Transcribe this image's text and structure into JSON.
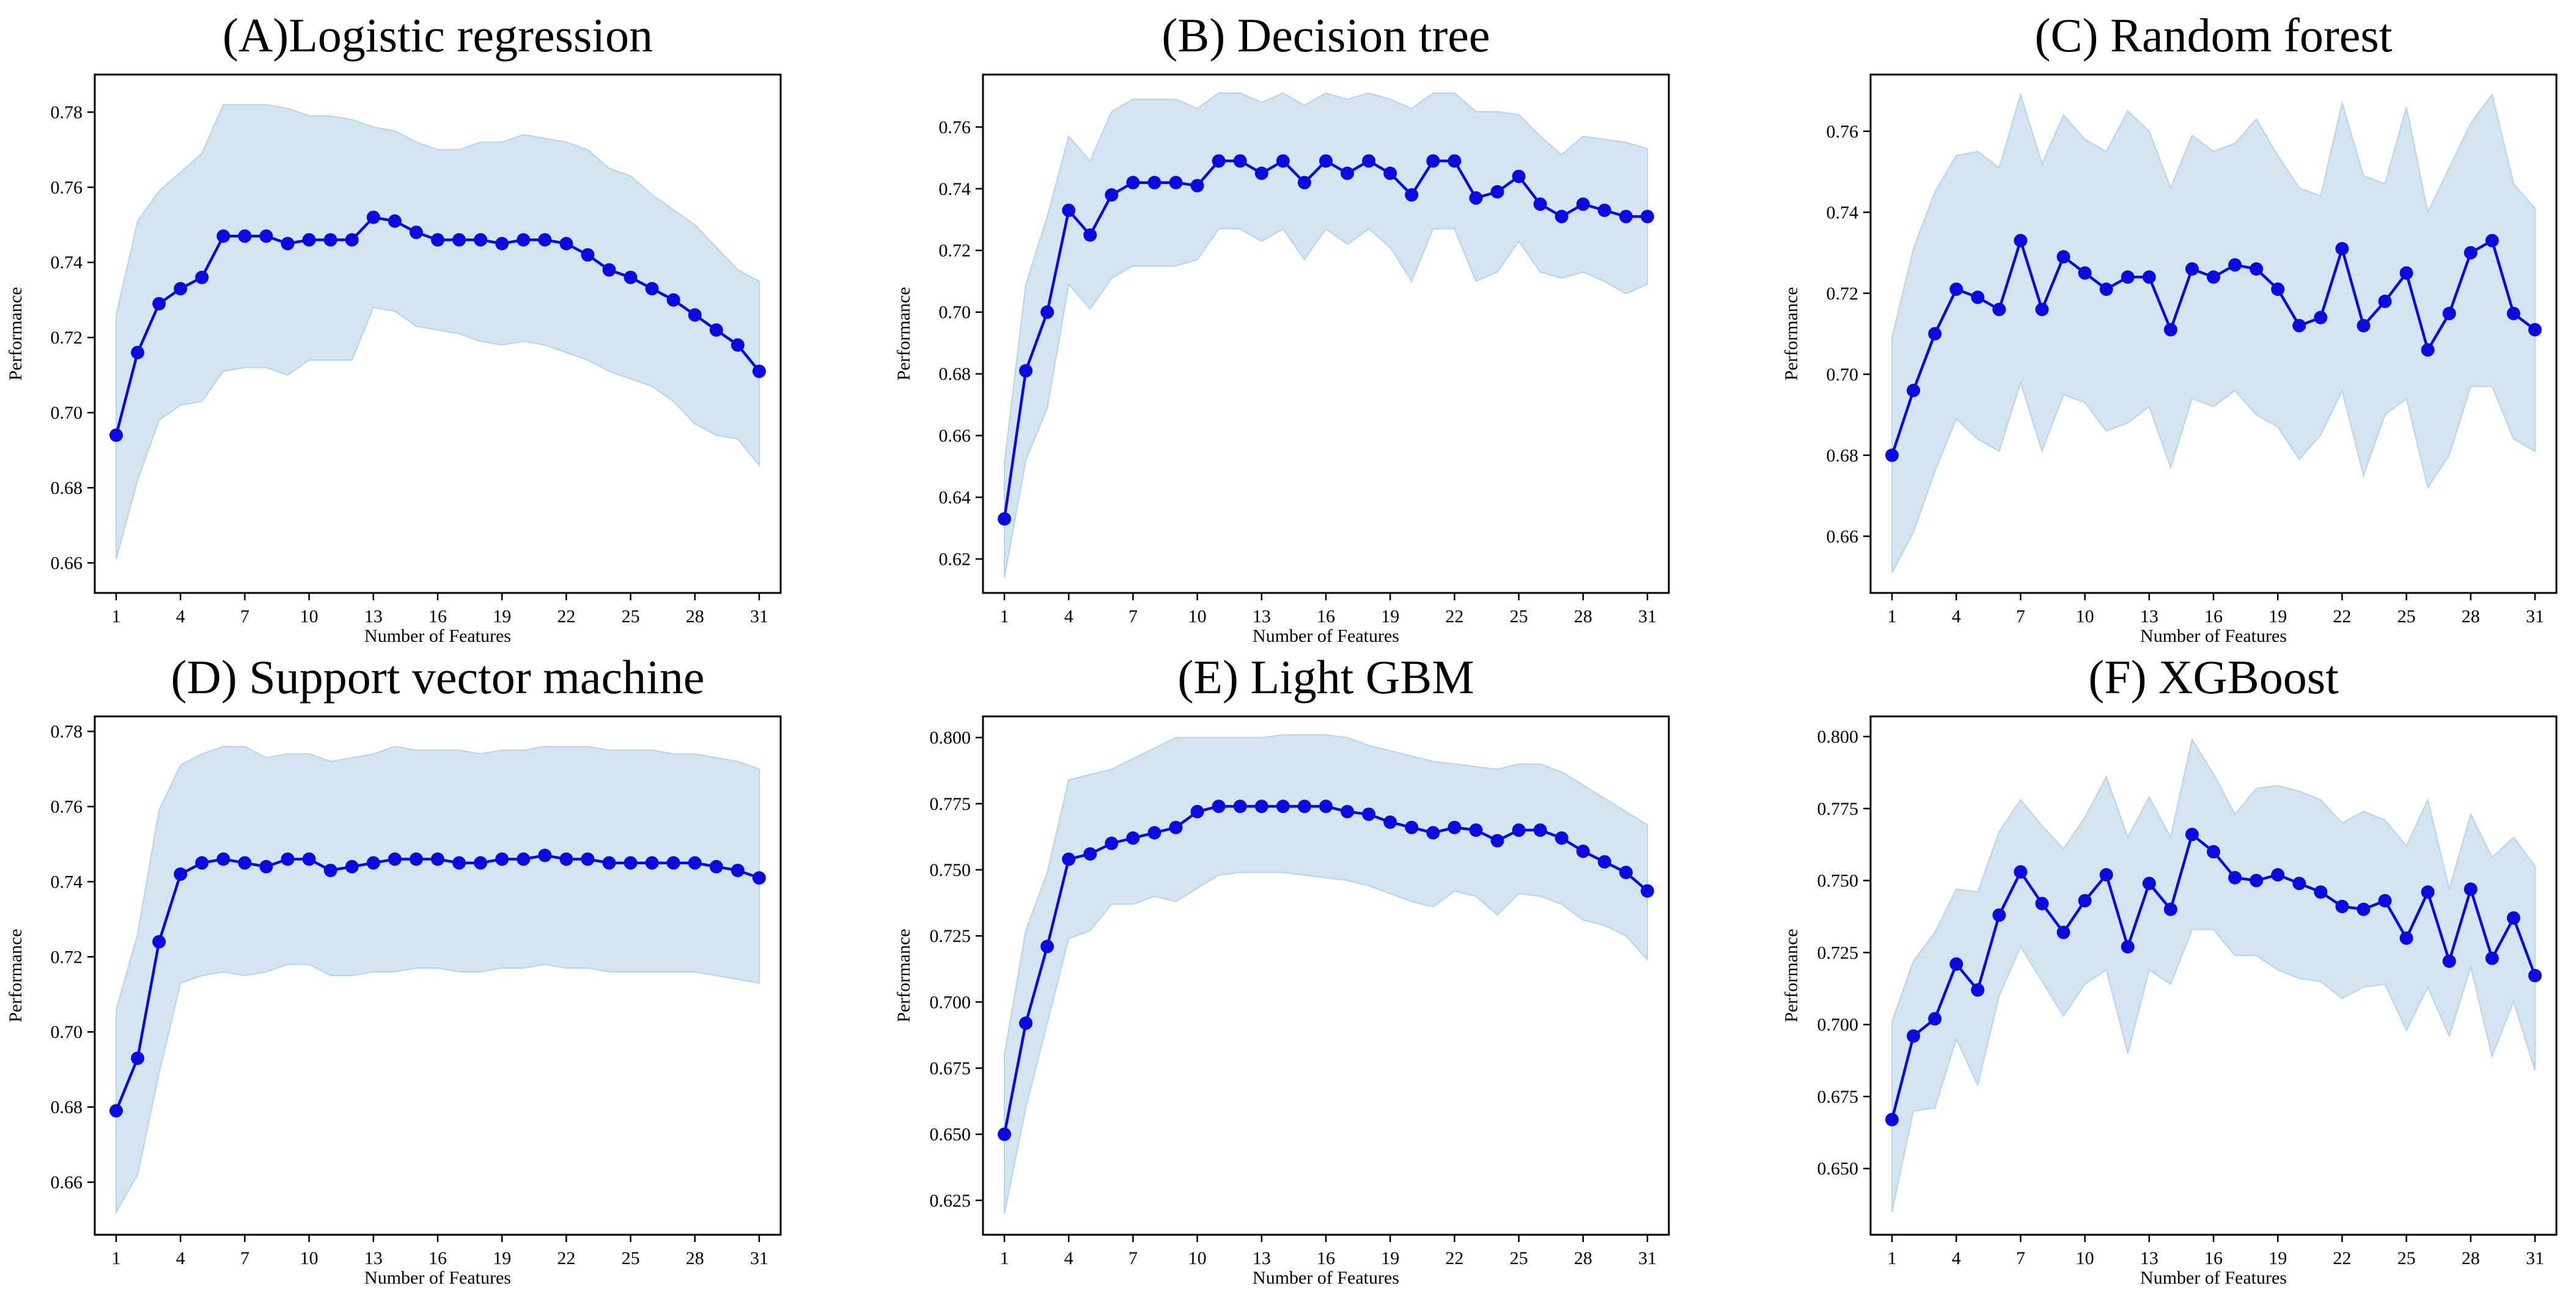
{
  "chart_data": [
    {
      "type": "line",
      "title": "(A)Logistic regression",
      "xlabel": "Number of Features",
      "ylabel": "Performance",
      "xlim": [
        0,
        32
      ],
      "ylim": [
        0.652,
        0.79
      ],
      "xticks": [
        1,
        4,
        7,
        10,
        13,
        16,
        19,
        22,
        25,
        28,
        31
      ],
      "yticks": [
        0.66,
        0.68,
        0.7,
        0.72,
        0.74,
        0.76,
        0.78
      ],
      "ytick_labels": [
        "0.66",
        "0.68",
        "0.70",
        "0.72",
        "0.74",
        "0.76",
        "0.78"
      ],
      "x": [
        1,
        2,
        3,
        4,
        5,
        6,
        7,
        8,
        9,
        10,
        11,
        12,
        13,
        14,
        15,
        16,
        17,
        18,
        19,
        20,
        21,
        22,
        23,
        24,
        25,
        26,
        27,
        28,
        29,
        30,
        31
      ],
      "y": [
        0.694,
        0.716,
        0.729,
        0.733,
        0.736,
        0.747,
        0.747,
        0.747,
        0.745,
        0.746,
        0.746,
        0.746,
        0.752,
        0.751,
        0.748,
        0.746,
        0.746,
        0.746,
        0.745,
        0.746,
        0.746,
        0.745,
        0.742,
        0.738,
        0.736,
        0.733,
        0.73,
        0.726,
        0.722,
        0.718,
        0.711
      ],
      "upper": [
        0.726,
        0.751,
        0.759,
        0.764,
        0.769,
        0.782,
        0.782,
        0.782,
        0.781,
        0.779,
        0.779,
        0.778,
        0.776,
        0.775,
        0.772,
        0.77,
        0.77,
        0.772,
        0.772,
        0.774,
        0.773,
        0.772,
        0.77,
        0.765,
        0.763,
        0.758,
        0.754,
        0.75,
        0.744,
        0.738,
        0.735
      ],
      "lower": [
        0.661,
        0.682,
        0.698,
        0.702,
        0.703,
        0.711,
        0.712,
        0.712,
        0.71,
        0.714,
        0.714,
        0.714,
        0.728,
        0.727,
        0.723,
        0.722,
        0.721,
        0.719,
        0.718,
        0.719,
        0.718,
        0.716,
        0.714,
        0.711,
        0.709,
        0.707,
        0.703,
        0.697,
        0.694,
        0.693,
        0.686
      ]
    },
    {
      "type": "line",
      "title": "(B) Decision tree",
      "xlabel": "Number of Features",
      "ylabel": "Performance",
      "xlim": [
        0,
        32
      ],
      "ylim": [
        0.609,
        0.777
      ],
      "xticks": [
        1,
        4,
        7,
        10,
        13,
        16,
        19,
        22,
        25,
        28,
        31
      ],
      "yticks": [
        0.62,
        0.64,
        0.66,
        0.68,
        0.7,
        0.72,
        0.74,
        0.76
      ],
      "ytick_labels": [
        "0.62",
        "0.64",
        "0.66",
        "0.68",
        "0.70",
        "0.72",
        "0.74",
        "0.76"
      ],
      "x": [
        1,
        2,
        3,
        4,
        5,
        6,
        7,
        8,
        9,
        10,
        11,
        12,
        13,
        14,
        15,
        16,
        17,
        18,
        19,
        20,
        21,
        22,
        23,
        24,
        25,
        26,
        27,
        28,
        29,
        30,
        31
      ],
      "y": [
        0.633,
        0.681,
        0.7,
        0.733,
        0.725,
        0.738,
        0.742,
        0.742,
        0.742,
        0.741,
        0.749,
        0.749,
        0.745,
        0.749,
        0.742,
        0.749,
        0.745,
        0.749,
        0.745,
        0.738,
        0.749,
        0.749,
        0.737,
        0.739,
        0.744,
        0.735,
        0.731,
        0.735,
        0.733,
        0.731,
        0.731
      ],
      "upper": [
        0.651,
        0.709,
        0.731,
        0.757,
        0.749,
        0.765,
        0.769,
        0.769,
        0.769,
        0.766,
        0.771,
        0.771,
        0.768,
        0.771,
        0.767,
        0.771,
        0.769,
        0.771,
        0.769,
        0.766,
        0.771,
        0.771,
        0.765,
        0.765,
        0.764,
        0.757,
        0.751,
        0.757,
        0.756,
        0.755,
        0.753
      ],
      "lower": [
        0.614,
        0.652,
        0.669,
        0.709,
        0.701,
        0.711,
        0.715,
        0.715,
        0.715,
        0.717,
        0.727,
        0.727,
        0.723,
        0.727,
        0.717,
        0.727,
        0.722,
        0.727,
        0.721,
        0.71,
        0.727,
        0.727,
        0.71,
        0.713,
        0.723,
        0.713,
        0.711,
        0.713,
        0.71,
        0.706,
        0.709
      ]
    },
    {
      "type": "line",
      "title": "(C) Random forest",
      "xlabel": "Number of Features",
      "ylabel": "Performance",
      "xlim": [
        0,
        32
      ],
      "ylim": [
        0.646,
        0.774
      ],
      "xticks": [
        1,
        4,
        7,
        10,
        13,
        16,
        19,
        22,
        25,
        28,
        31
      ],
      "yticks": [
        0.66,
        0.68,
        0.7,
        0.72,
        0.74,
        0.76
      ],
      "ytick_labels": [
        "0.66",
        "0.68",
        "0.70",
        "0.72",
        "0.74",
        "0.76"
      ],
      "x": [
        1,
        2,
        3,
        4,
        5,
        6,
        7,
        8,
        9,
        10,
        11,
        12,
        13,
        14,
        15,
        16,
        17,
        18,
        19,
        20,
        21,
        22,
        23,
        24,
        25,
        26,
        27,
        28,
        29,
        30,
        31
      ],
      "y": [
        0.68,
        0.696,
        0.71,
        0.721,
        0.719,
        0.716,
        0.733,
        0.716,
        0.729,
        0.725,
        0.721,
        0.724,
        0.724,
        0.711,
        0.726,
        0.724,
        0.727,
        0.726,
        0.721,
        0.712,
        0.714,
        0.731,
        0.712,
        0.718,
        0.725,
        0.706,
        0.715,
        0.73,
        0.733,
        0.715,
        0.711
      ],
      "upper": [
        0.709,
        0.731,
        0.745,
        0.754,
        0.755,
        0.751,
        0.769,
        0.752,
        0.764,
        0.758,
        0.755,
        0.765,
        0.76,
        0.746,
        0.759,
        0.755,
        0.757,
        0.763,
        0.754,
        0.746,
        0.744,
        0.767,
        0.749,
        0.747,
        0.766,
        0.74,
        0.751,
        0.762,
        0.769,
        0.747,
        0.741
      ],
      "lower": [
        0.651,
        0.661,
        0.676,
        0.689,
        0.684,
        0.681,
        0.698,
        0.681,
        0.695,
        0.693,
        0.686,
        0.688,
        0.692,
        0.677,
        0.694,
        0.692,
        0.696,
        0.69,
        0.687,
        0.679,
        0.685,
        0.696,
        0.675,
        0.69,
        0.694,
        0.672,
        0.68,
        0.697,
        0.697,
        0.684,
        0.681
      ]
    },
    {
      "type": "line",
      "title": "(D) Support vector machine",
      "xlabel": "Number of Features",
      "ylabel": "Performance",
      "xlim": [
        0,
        32
      ],
      "ylim": [
        0.646,
        0.784
      ],
      "xticks": [
        1,
        4,
        7,
        10,
        13,
        16,
        19,
        22,
        25,
        28,
        31
      ],
      "yticks": [
        0.66,
        0.68,
        0.7,
        0.72,
        0.74,
        0.76,
        0.78
      ],
      "ytick_labels": [
        "0.66",
        "0.68",
        "0.70",
        "0.72",
        "0.74",
        "0.76",
        "0.78"
      ],
      "x": [
        1,
        2,
        3,
        4,
        5,
        6,
        7,
        8,
        9,
        10,
        11,
        12,
        13,
        14,
        15,
        16,
        17,
        18,
        19,
        20,
        21,
        22,
        23,
        24,
        25,
        26,
        27,
        28,
        29,
        30,
        31
      ],
      "y": [
        0.679,
        0.693,
        0.724,
        0.742,
        0.745,
        0.746,
        0.745,
        0.744,
        0.746,
        0.746,
        0.743,
        0.744,
        0.745,
        0.746,
        0.746,
        0.746,
        0.745,
        0.745,
        0.746,
        0.746,
        0.747,
        0.746,
        0.746,
        0.745,
        0.745,
        0.745,
        0.745,
        0.745,
        0.744,
        0.743,
        0.741
      ],
      "upper": [
        0.706,
        0.726,
        0.759,
        0.771,
        0.774,
        0.776,
        0.776,
        0.773,
        0.774,
        0.774,
        0.772,
        0.773,
        0.774,
        0.776,
        0.775,
        0.775,
        0.775,
        0.774,
        0.775,
        0.775,
        0.776,
        0.776,
        0.776,
        0.775,
        0.775,
        0.775,
        0.774,
        0.774,
        0.773,
        0.772,
        0.77
      ],
      "lower": [
        0.652,
        0.662,
        0.689,
        0.713,
        0.715,
        0.716,
        0.715,
        0.716,
        0.718,
        0.718,
        0.715,
        0.715,
        0.716,
        0.716,
        0.717,
        0.717,
        0.716,
        0.716,
        0.717,
        0.717,
        0.718,
        0.717,
        0.717,
        0.716,
        0.716,
        0.716,
        0.716,
        0.716,
        0.715,
        0.714,
        0.713
      ]
    },
    {
      "type": "line",
      "title": "(E) Light GBM",
      "xlabel": "Number of Features",
      "ylabel": "Performance",
      "xlim": [
        0,
        32
      ],
      "ylim": [
        0.612,
        0.808
      ],
      "xticks": [
        1,
        4,
        7,
        10,
        13,
        16,
        19,
        22,
        25,
        28,
        31
      ],
      "yticks": [
        0.625,
        0.65,
        0.675,
        0.7,
        0.725,
        0.75,
        0.775,
        0.8
      ],
      "ytick_labels": [
        "0.625",
        "0.650",
        "0.675",
        "0.700",
        "0.725",
        "0.750",
        "0.775",
        "0.800"
      ],
      "x": [
        1,
        2,
        3,
        4,
        5,
        6,
        7,
        8,
        9,
        10,
        11,
        12,
        13,
        14,
        15,
        16,
        17,
        18,
        19,
        20,
        21,
        22,
        23,
        24,
        25,
        26,
        27,
        28,
        29,
        30,
        31
      ],
      "y": [
        0.65,
        0.692,
        0.721,
        0.754,
        0.756,
        0.76,
        0.762,
        0.764,
        0.766,
        0.772,
        0.774,
        0.774,
        0.774,
        0.774,
        0.774,
        0.774,
        0.772,
        0.771,
        0.768,
        0.766,
        0.764,
        0.766,
        0.765,
        0.761,
        0.765,
        0.765,
        0.762,
        0.757,
        0.753,
        0.749,
        0.742
      ],
      "upper": [
        0.68,
        0.727,
        0.749,
        0.784,
        0.786,
        0.788,
        0.792,
        0.796,
        0.8,
        0.8,
        0.8,
        0.8,
        0.8,
        0.801,
        0.801,
        0.801,
        0.8,
        0.797,
        0.795,
        0.793,
        0.791,
        0.79,
        0.789,
        0.788,
        0.79,
        0.79,
        0.787,
        0.782,
        0.777,
        0.772,
        0.767
      ],
      "lower": [
        0.62,
        0.66,
        0.692,
        0.724,
        0.727,
        0.737,
        0.737,
        0.74,
        0.738,
        0.743,
        0.748,
        0.749,
        0.749,
        0.749,
        0.748,
        0.747,
        0.746,
        0.744,
        0.741,
        0.738,
        0.736,
        0.742,
        0.74,
        0.733,
        0.741,
        0.74,
        0.737,
        0.731,
        0.729,
        0.725,
        0.716
      ]
    },
    {
      "type": "line",
      "title": "(F) XGBoost",
      "xlabel": "Number of Features",
      "ylabel": "Performance",
      "xlim": [
        0,
        32
      ],
      "ylim": [
        0.627,
        0.807
      ],
      "xticks": [
        1,
        4,
        7,
        10,
        13,
        16,
        19,
        22,
        25,
        28,
        31
      ],
      "yticks": [
        0.65,
        0.675,
        0.7,
        0.725,
        0.75,
        0.775,
        0.8
      ],
      "ytick_labels": [
        "0.650",
        "0.675",
        "0.700",
        "0.725",
        "0.750",
        "0.775",
        "0.800"
      ],
      "x": [
        1,
        2,
        3,
        4,
        5,
        6,
        7,
        8,
        9,
        10,
        11,
        12,
        13,
        14,
        15,
        16,
        17,
        18,
        19,
        20,
        21,
        22,
        23,
        24,
        25,
        26,
        27,
        28,
        29,
        30,
        31
      ],
      "y": [
        0.667,
        0.696,
        0.702,
        0.721,
        0.712,
        0.738,
        0.753,
        0.742,
        0.732,
        0.743,
        0.752,
        0.727,
        0.749,
        0.74,
        0.766,
        0.76,
        0.751,
        0.75,
        0.752,
        0.749,
        0.746,
        0.741,
        0.74,
        0.743,
        0.73,
        0.746,
        0.722,
        0.747,
        0.723,
        0.737,
        0.717
      ],
      "upper": [
        0.701,
        0.722,
        0.732,
        0.747,
        0.746,
        0.767,
        0.778,
        0.769,
        0.761,
        0.772,
        0.786,
        0.765,
        0.779,
        0.765,
        0.799,
        0.787,
        0.773,
        0.782,
        0.783,
        0.781,
        0.778,
        0.77,
        0.774,
        0.771,
        0.762,
        0.778,
        0.747,
        0.773,
        0.758,
        0.765,
        0.755
      ],
      "lower": [
        0.635,
        0.67,
        0.671,
        0.695,
        0.679,
        0.71,
        0.727,
        0.715,
        0.703,
        0.714,
        0.719,
        0.69,
        0.719,
        0.714,
        0.733,
        0.733,
        0.724,
        0.724,
        0.719,
        0.716,
        0.715,
        0.709,
        0.713,
        0.714,
        0.698,
        0.713,
        0.696,
        0.72,
        0.689,
        0.708,
        0.684
      ]
    }
  ]
}
